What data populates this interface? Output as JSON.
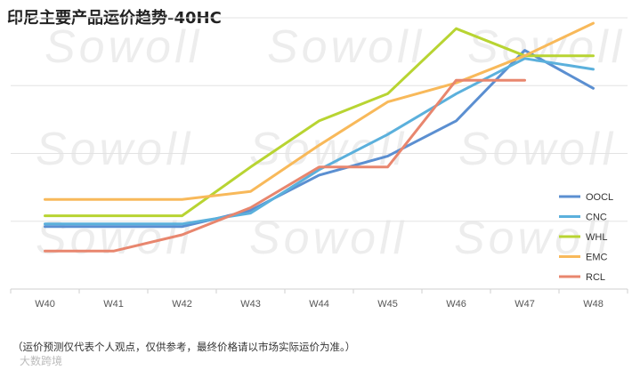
{
  "chart_data": {
    "type": "line",
    "title": "印尼主要产品运价趋势-40HC",
    "categories": [
      "W40",
      "W41",
      "W42",
      "W43",
      "W44",
      "W45",
      "W46",
      "W47",
      "W48"
    ],
    "ylim": [
      0,
      100
    ],
    "grid": "horizontal",
    "legend_position": "right",
    "series": [
      {
        "name": "OOCL",
        "color": "#5B8FD1",
        "values": [
          23,
          23,
          23,
          29,
          42,
          49,
          62,
          88,
          74
        ]
      },
      {
        "name": "CNC",
        "color": "#5BB0DC",
        "values": [
          24,
          24,
          24,
          28,
          44,
          57,
          72,
          85,
          81
        ]
      },
      {
        "name": "WHL",
        "color": "#B8D432",
        "values": [
          27,
          27,
          27,
          45,
          62,
          72,
          96,
          86,
          86
        ]
      },
      {
        "name": "EMC",
        "color": "#F8B95A",
        "values": [
          33,
          33,
          33,
          36,
          53,
          69,
          76,
          86,
          98
        ]
      },
      {
        "name": "RCL",
        "color": "#E8866E",
        "values": [
          14,
          14,
          20,
          30,
          45,
          45,
          77,
          77,
          null
        ]
      }
    ]
  },
  "watermark": "Sowoll",
  "footnote": "（运价预测仅代表个人观点，仅供参考，最终价格请以市场实际运价为准。）",
  "corner_logo": "大数跨境"
}
